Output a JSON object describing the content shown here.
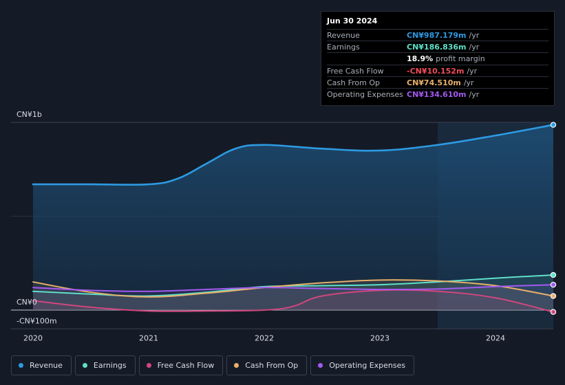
{
  "tooltip": {
    "date": "Jun 30 2024",
    "rows": [
      {
        "label": "Revenue",
        "value": "CN¥987.179m",
        "unit": "/yr",
        "color": "#2d9be3"
      },
      {
        "label": "Earnings",
        "value": "CN¥186.836m",
        "unit": "/yr",
        "color": "#5fe0c9"
      },
      {
        "label": "",
        "value": "18.9%",
        "unit": "profit margin",
        "color": "#ffffff"
      },
      {
        "label": "Free Cash Flow",
        "value": "-CN¥10.152m",
        "unit": "/yr",
        "color": "#ef4d5a"
      },
      {
        "label": "Cash From Op",
        "value": "CN¥74.510m",
        "unit": "/yr",
        "color": "#e8b06a"
      },
      {
        "label": "Operating Expenses",
        "value": "CN¥134.610m",
        "unit": "/yr",
        "color": "#a35af0"
      }
    ]
  },
  "legend": [
    {
      "label": "Revenue",
      "color": "#2d9be3"
    },
    {
      "label": "Earnings",
      "color": "#5fe0c9"
    },
    {
      "label": "Free Cash Flow",
      "color": "#d1477f"
    },
    {
      "label": "Cash From Op",
      "color": "#e8b06a"
    },
    {
      "label": "Operating Expenses",
      "color": "#a35af0"
    }
  ],
  "chart_data": {
    "type": "area",
    "title": "",
    "y_unit": "CN¥ millions",
    "ylim": [
      -100,
      1000
    ],
    "y_tick_labels": [
      {
        "value": 1000,
        "label": "CN¥1b"
      },
      {
        "value": 0,
        "label": "CN¥0"
      },
      {
        "value": -100,
        "label": "-CN¥100m"
      }
    ],
    "x_tick_labels": [
      "2020",
      "2021",
      "2022",
      "2023",
      "2024"
    ],
    "xlim": [
      2020.0,
      2024.5
    ],
    "highlight_start": 2023.5,
    "series": [
      {
        "name": "Revenue",
        "color": "#2d9be3",
        "x": [
          2020.0,
          2020.5,
          2021.0,
          2021.25,
          2021.5,
          2021.75,
          2022.0,
          2022.5,
          2023.0,
          2023.5,
          2024.0,
          2024.5
        ],
        "values": [
          670,
          670,
          670,
          700,
          780,
          860,
          880,
          860,
          850,
          880,
          930,
          987
        ]
      },
      {
        "name": "Earnings",
        "color": "#5fe0c9",
        "x": [
          2020.0,
          2020.5,
          2021.0,
          2021.5,
          2022.0,
          2022.5,
          2023.0,
          2023.5,
          2024.0,
          2024.5
        ],
        "values": [
          100,
          85,
          75,
          95,
          125,
          130,
          135,
          150,
          170,
          187
        ]
      },
      {
        "name": "Free Cash Flow",
        "color": "#d1477f",
        "x": [
          2020.0,
          2020.5,
          2021.0,
          2021.5,
          2022.0,
          2022.25,
          2022.5,
          2023.0,
          2023.5,
          2024.0,
          2024.5
        ],
        "values": [
          50,
          15,
          -5,
          -5,
          0,
          20,
          75,
          105,
          100,
          65,
          -10
        ]
      },
      {
        "name": "Cash From Op",
        "color": "#e8b06a",
        "x": [
          2020.0,
          2020.5,
          2021.0,
          2021.5,
          2022.0,
          2022.5,
          2023.0,
          2023.5,
          2024.0,
          2024.5
        ],
        "values": [
          150,
          95,
          70,
          90,
          120,
          145,
          160,
          155,
          130,
          75
        ]
      },
      {
        "name": "Operating Expenses",
        "color": "#a35af0",
        "x": [
          2020.0,
          2020.5,
          2021.0,
          2021.5,
          2022.0,
          2022.5,
          2023.0,
          2023.5,
          2024.0,
          2024.5
        ],
        "values": [
          120,
          105,
          100,
          110,
          120,
          115,
          110,
          112,
          125,
          135
        ]
      }
    ]
  }
}
